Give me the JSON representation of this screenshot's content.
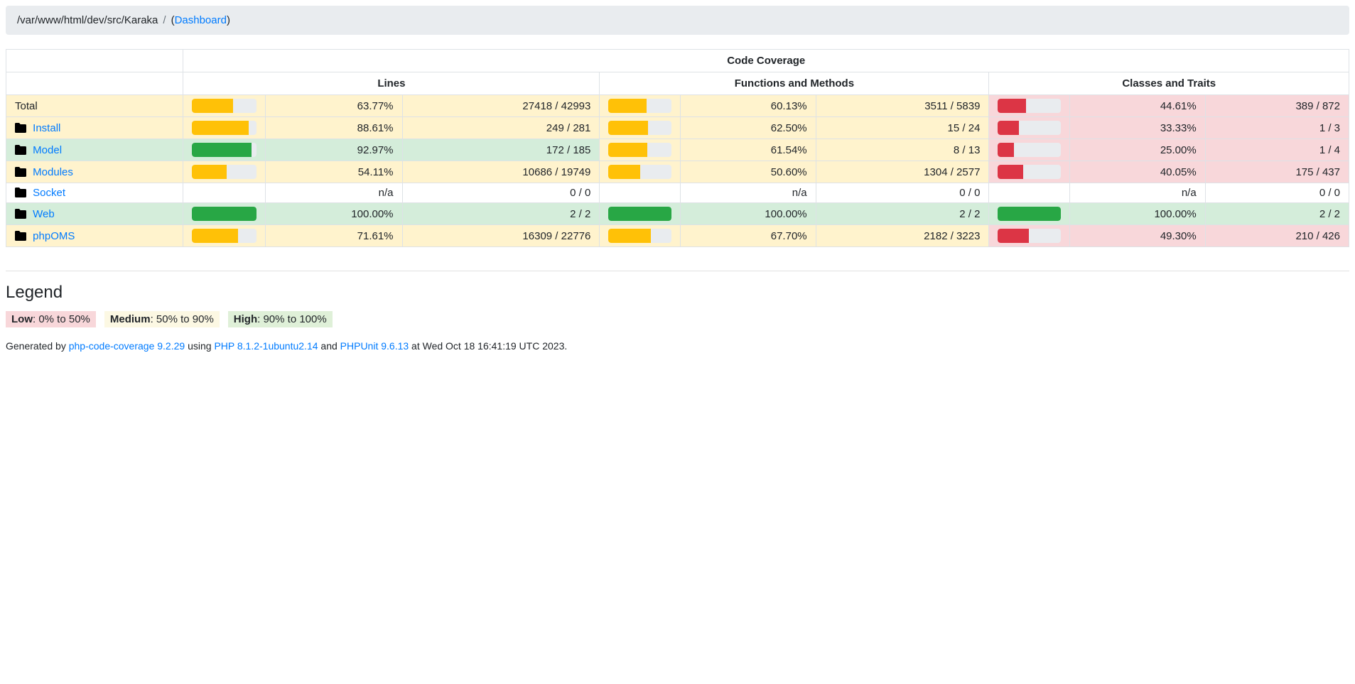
{
  "breadcrumb": {
    "path": "/var/www/html/dev/src/Karaka",
    "separator": "/",
    "paren_open": "(",
    "active_link": "Dashboard",
    "paren_close": ")"
  },
  "table": {
    "title": "Code Coverage",
    "section_headers": [
      "Lines",
      "Functions and Methods",
      "Classes and Traits"
    ],
    "rows": [
      {
        "name": "Total",
        "is_link": false,
        "lines": {
          "pct": "63.77%",
          "fill": 63.77,
          "ratio": "27418 / 42993",
          "level": "medium"
        },
        "functions": {
          "pct": "60.13%",
          "fill": 60.13,
          "ratio": "3511 / 5839",
          "level": "medium"
        },
        "classes": {
          "pct": "44.61%",
          "fill": 44.61,
          "ratio": "389 / 872",
          "level": "low"
        }
      },
      {
        "name": "Install",
        "is_link": true,
        "lines": {
          "pct": "88.61%",
          "fill": 88.61,
          "ratio": "249 / 281",
          "level": "medium"
        },
        "functions": {
          "pct": "62.50%",
          "fill": 62.5,
          "ratio": "15 / 24",
          "level": "medium"
        },
        "classes": {
          "pct": "33.33%",
          "fill": 33.33,
          "ratio": "1 / 3",
          "level": "low"
        }
      },
      {
        "name": "Model",
        "is_link": true,
        "lines": {
          "pct": "92.97%",
          "fill": 92.97,
          "ratio": "172 / 185",
          "level": "high"
        },
        "functions": {
          "pct": "61.54%",
          "fill": 61.54,
          "ratio": "8 / 13",
          "level": "medium"
        },
        "classes": {
          "pct": "25.00%",
          "fill": 25.0,
          "ratio": "1 / 4",
          "level": "low"
        }
      },
      {
        "name": "Modules",
        "is_link": true,
        "lines": {
          "pct": "54.11%",
          "fill": 54.11,
          "ratio": "10686 / 19749",
          "level": "medium"
        },
        "functions": {
          "pct": "50.60%",
          "fill": 50.6,
          "ratio": "1304 / 2577",
          "level": "medium"
        },
        "classes": {
          "pct": "40.05%",
          "fill": 40.05,
          "ratio": "175 / 437",
          "level": "low"
        }
      },
      {
        "name": "Socket",
        "is_link": true,
        "lines": {
          "pct": "n/a",
          "fill": 0,
          "ratio": "0 / 0",
          "level": "none"
        },
        "functions": {
          "pct": "n/a",
          "fill": 0,
          "ratio": "0 / 0",
          "level": "none"
        },
        "classes": {
          "pct": "n/a",
          "fill": 0,
          "ratio": "0 / 0",
          "level": "none"
        }
      },
      {
        "name": "Web",
        "is_link": true,
        "lines": {
          "pct": "100.00%",
          "fill": 100,
          "ratio": "2 / 2",
          "level": "high"
        },
        "functions": {
          "pct": "100.00%",
          "fill": 100,
          "ratio": "2 / 2",
          "level": "high"
        },
        "classes": {
          "pct": "100.00%",
          "fill": 100,
          "ratio": "2 / 2",
          "level": "high"
        }
      },
      {
        "name": "phpOMS",
        "is_link": true,
        "lines": {
          "pct": "71.61%",
          "fill": 71.61,
          "ratio": "16309 / 22776",
          "level": "medium"
        },
        "functions": {
          "pct": "67.70%",
          "fill": 67.7,
          "ratio": "2182 / 3223",
          "level": "medium"
        },
        "classes": {
          "pct": "49.30%",
          "fill": 49.3,
          "ratio": "210 / 426",
          "level": "low"
        }
      }
    ]
  },
  "legend": {
    "title": "Legend",
    "items": [
      {
        "label": "Low",
        "range": ": 0% to 50%",
        "level": "low"
      },
      {
        "label": "Medium",
        "range": ": 50% to 90%",
        "level": "medium"
      },
      {
        "label": "High",
        "range": ": 90% to 100%",
        "level": "high"
      }
    ]
  },
  "footer": {
    "prefix": "Generated by ",
    "generator_link": "php-code-coverage 9.2.29",
    "mid1": " using ",
    "php_link": "PHP 8.1.2-1ubuntu2.14",
    "mid2": " and ",
    "phpunit_link": "PHPUnit 9.6.13",
    "suffix": " at Wed Oct 18 16:41:19 UTC 2023."
  },
  "colors": {
    "link": "#007bff",
    "breadcrumb_bg": "#e9ecef",
    "bar_track": "#e9ecef",
    "bar_low": "#dc3545",
    "bar_medium": "#ffc107",
    "bar_high": "#28a745",
    "cell_low_bg": "#f8d7da",
    "cell_medium_bg": "#fff3cd",
    "cell_high_bg": "#d4edda",
    "border": "#dee2e6"
  }
}
